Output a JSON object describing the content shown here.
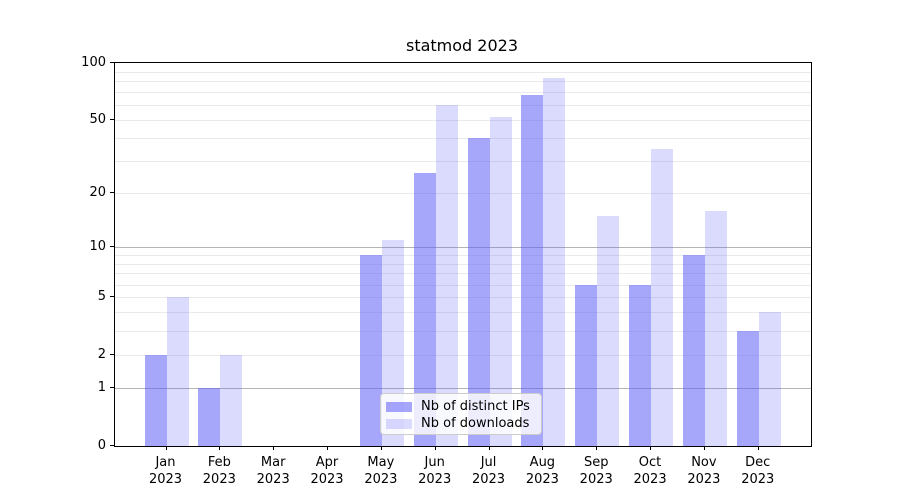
{
  "title": "statmod 2023",
  "legend": {
    "entries": [
      {
        "label": "Nb of distinct IPs",
        "swatch": "dark"
      },
      {
        "label": "Nb of downloads",
        "swatch": "light"
      }
    ]
  },
  "colors": {
    "bar_base_rgb": "92,92,248",
    "dark_alpha": 0.55,
    "light_alpha": 0.22,
    "grid_major": "#b4b4b4",
    "grid_minor": "#eaeaea",
    "spine": "#000000",
    "legend_border": "#cccccc"
  },
  "chart_data": {
    "type": "bar",
    "title": "statmod 2023",
    "categories": [
      "Jan",
      "Feb",
      "Mar",
      "Apr",
      "May",
      "Jun",
      "Jul",
      "Aug",
      "Sep",
      "Oct",
      "Nov",
      "Dec"
    ],
    "category_year": "2023",
    "series": [
      {
        "name": "Nb of distinct IPs",
        "values": [
          2,
          1,
          0,
          0,
          9,
          26,
          40,
          68,
          6,
          6,
          9,
          3
        ]
      },
      {
        "name": "Nb of downloads",
        "values": [
          5,
          2,
          0,
          0,
          11,
          60,
          52,
          83,
          15,
          35,
          16,
          4
        ]
      }
    ],
    "xlabel": "",
    "ylabel": "",
    "yscale": "log1p",
    "ylim": [
      0,
      100
    ],
    "ytick_values": [
      0,
      1,
      2,
      5,
      10,
      20,
      50,
      100
    ],
    "grid_major_values": [
      1,
      10
    ],
    "grid_minor_values": [
      2,
      3,
      4,
      5,
      6,
      7,
      8,
      9,
      20,
      30,
      40,
      50,
      60,
      70,
      80,
      90
    ],
    "grid": "on",
    "legend_position": "lower center"
  }
}
